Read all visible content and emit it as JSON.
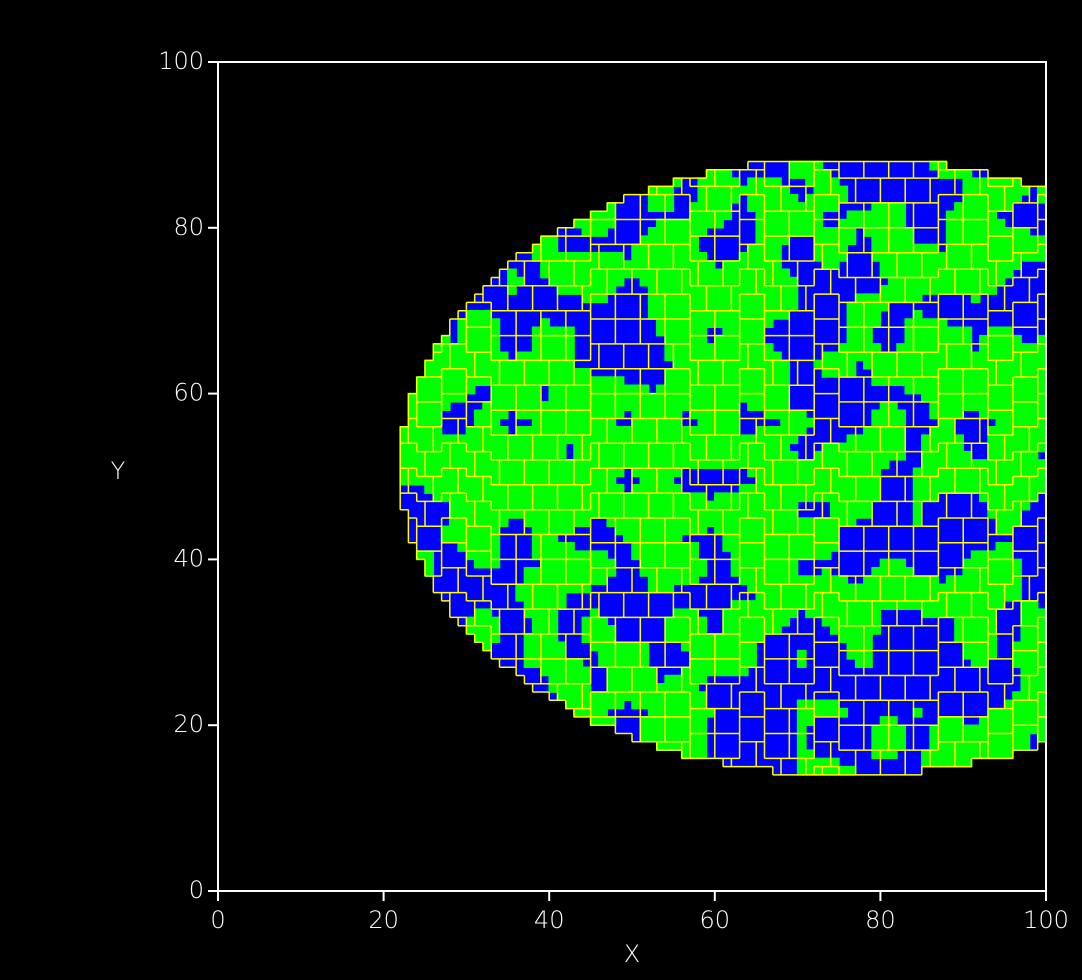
{
  "chart_data": {
    "type": "image",
    "xlabel": "X",
    "ylabel": "Y",
    "xlim": [
      0,
      100
    ],
    "ylim": [
      0,
      100
    ],
    "xticks": [
      0,
      20,
      40,
      60,
      80,
      100
    ],
    "yticks": [
      0,
      20,
      40,
      60,
      80,
      100
    ]
  }
}
